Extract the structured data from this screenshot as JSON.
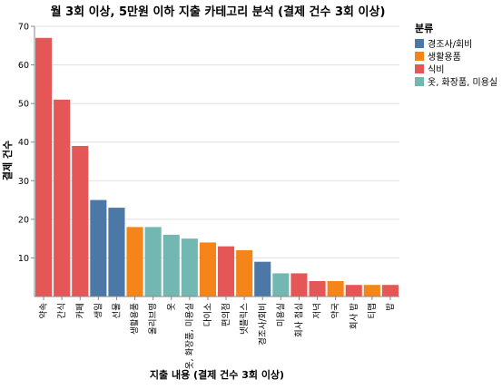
{
  "chart_data": {
    "type": "bar",
    "title": "월 3회 이상, 5만원 이하 지출 카테고리 분석 (결제 건수 3회 이상)",
    "xlabel": "지출 내용 (결제 건수 3회 이상)",
    "ylabel": "결제 건수",
    "ylim": [
      0,
      70
    ],
    "yticks": [
      10,
      20,
      30,
      40,
      50,
      60,
      70
    ],
    "grid": true,
    "legend": {
      "title": "분류",
      "placement": "right",
      "entries": [
        {
          "name": "경조사/회비",
          "color": "#4c78a8"
        },
        {
          "name": "생활용품",
          "color": "#f58518"
        },
        {
          "name": "식비",
          "color": "#e45756"
        },
        {
          "name": "옷, 화장품, 미용실",
          "color": "#72b7b2"
        }
      ]
    },
    "categories": [
      "약속",
      "간식",
      "카페",
      "생일",
      "선물",
      "생활용품",
      "올리브영",
      "옷",
      "옷, 화장품, 미용실",
      "다이소",
      "편의점",
      "넷플릭스",
      "경조사/회비",
      "미용실",
      "회사 점심",
      "저녁",
      "약국",
      "회사 밥",
      "티맵",
      "밥"
    ],
    "values": [
      67,
      51,
      39,
      25,
      23,
      18,
      18,
      16,
      15,
      14,
      13,
      12,
      9,
      6,
      6,
      4,
      4,
      3,
      3,
      3
    ],
    "groups": [
      "식비",
      "식비",
      "식비",
      "경조사/회비",
      "경조사/회비",
      "생활용품",
      "옷, 화장품, 미용실",
      "옷, 화장품, 미용실",
      "옷, 화장품, 미용실",
      "생활용품",
      "식비",
      "생활용품",
      "경조사/회비",
      "옷, 화장품, 미용실",
      "식비",
      "식비",
      "생활용품",
      "식비",
      "생활용품",
      "식비"
    ]
  }
}
